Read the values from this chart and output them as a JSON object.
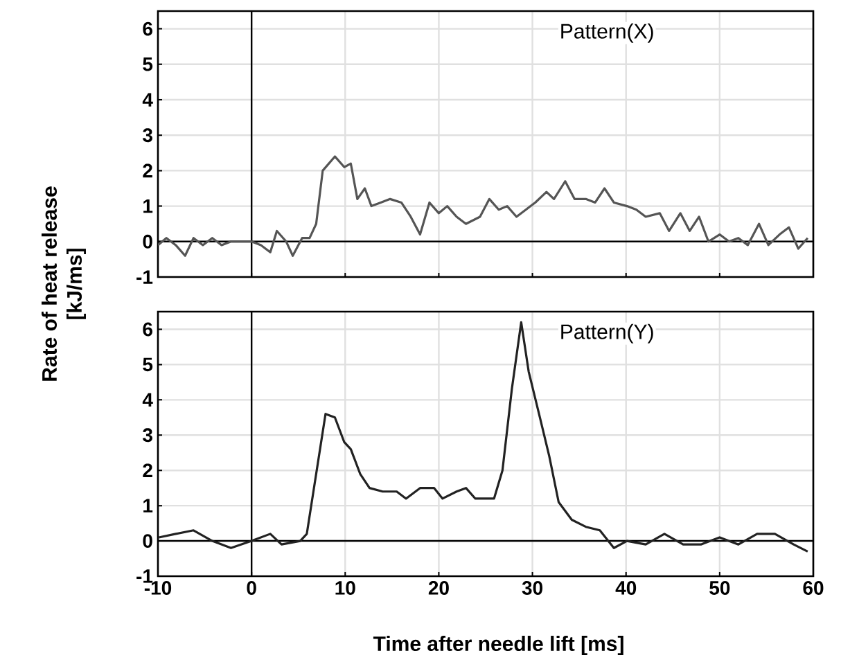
{
  "chart_data": [
    {
      "type": "line",
      "ylabel": "Rate of heat release [kJ/ms]",
      "annotations": [
        "Pattern(X)"
      ],
      "xlim": [
        -10,
        60
      ],
      "ylim": [
        -1,
        6.5
      ],
      "xticks": [
        -10,
        0,
        10,
        20,
        30,
        40,
        50,
        60
      ],
      "yticks": [
        -1,
        0,
        1,
        2,
        3,
        4,
        5,
        6
      ],
      "grid": true,
      "tick_labels": "y",
      "x": [
        -10,
        -9.1,
        -8.1,
        -7.1,
        -6.2,
        -5.2,
        -4.2,
        -3.2,
        -2.2,
        -0.7,
        0,
        1.0,
        2.0,
        2.7,
        3.7,
        4.4,
        5.4,
        6.2,
        6.9,
        7.6,
        8.9,
        9.9,
        10.6,
        11.3,
        12.1,
        12.8,
        13.8,
        14.8,
        16.0,
        17.0,
        18.0,
        19.0,
        20.0,
        20.9,
        21.9,
        22.9,
        24.4,
        25.4,
        26.4,
        27.3,
        28.3,
        29.3,
        30.3,
        31.5,
        32.3,
        33.5,
        34.5,
        35.7,
        36.7,
        37.7,
        38.7,
        40.1,
        41.1,
        42.1,
        43.6,
        44.6,
        45.8,
        46.8,
        47.8,
        48.8,
        50.0,
        51.0,
        52.0,
        53.0,
        54.2,
        55.2,
        56.4,
        57.4,
        58.4,
        59.4
      ],
      "series": [
        {
          "color": "#555555",
          "values": [
            -0.1,
            0.1,
            -0.1,
            -0.4,
            0.1,
            -0.1,
            0.1,
            -0.1,
            0,
            0,
            0,
            -0.1,
            -0.3,
            0.3,
            0,
            -0.4,
            0.1,
            0.1,
            0.5,
            2.0,
            2.4,
            2.1,
            2.2,
            1.2,
            1.5,
            1.0,
            1.1,
            1.2,
            1.1,
            0.7,
            0.2,
            1.1,
            0.8,
            1.0,
            0.7,
            0.5,
            0.7,
            1.2,
            0.9,
            1.0,
            0.7,
            0.9,
            1.1,
            1.4,
            1.2,
            1.7,
            1.2,
            1.2,
            1.1,
            1.5,
            1.1,
            1.0,
            0.9,
            0.7,
            0.8,
            0.3,
            0.8,
            0.3,
            0.7,
            0,
            0.2,
            0,
            0.1,
            -0.1,
            0.5,
            -0.1,
            0.2,
            0.4,
            -0.2,
            0.1
          ]
        }
      ]
    },
    {
      "type": "line",
      "xlabel": "Time after needle lift [ms]",
      "annotations": [
        "Pattern(Y)"
      ],
      "xlim": [
        -10,
        60
      ],
      "ylim": [
        -1,
        6.5
      ],
      "xticks": [
        -10,
        0,
        10,
        20,
        30,
        40,
        50,
        60
      ],
      "yticks": [
        -1,
        0,
        1,
        2,
        3,
        4,
        5,
        6
      ],
      "grid": true,
      "x": [
        -9.9,
        -8.1,
        -6.2,
        -4.2,
        -2.2,
        0,
        2.0,
        3.2,
        5.2,
        5.9,
        6.9,
        7.9,
        8.9,
        9.9,
        10.6,
        11.6,
        12.6,
        14.0,
        15.5,
        16.5,
        18.0,
        19.5,
        20.4,
        21.9,
        22.9,
        23.9,
        25.9,
        26.8,
        27.8,
        28.8,
        29.6,
        30.8,
        31.8,
        32.8,
        34.2,
        35.7,
        37.2,
        38.7,
        40.1,
        42.1,
        44.1,
        46.1,
        48.0,
        50.0,
        52.0,
        54.0,
        55.9,
        57.9,
        59.4
      ],
      "series": [
        {
          "color": "#222222",
          "values": [
            0.1,
            0.2,
            0.3,
            0,
            -0.2,
            0,
            0.2,
            -0.1,
            0,
            0.2,
            1.9,
            3.6,
            3.5,
            2.8,
            2.6,
            1.9,
            1.5,
            1.4,
            1.4,
            1.2,
            1.5,
            1.5,
            1.2,
            1.4,
            1.5,
            1.2,
            1.2,
            2.0,
            4.3,
            6.2,
            4.8,
            3.5,
            2.4,
            1.1,
            0.6,
            0.4,
            0.3,
            -0.2,
            0,
            -0.1,
            0.2,
            -0.1,
            -0.1,
            0.1,
            -0.1,
            0.2,
            0.2,
            -0.1,
            -0.3
          ]
        }
      ]
    }
  ]
}
